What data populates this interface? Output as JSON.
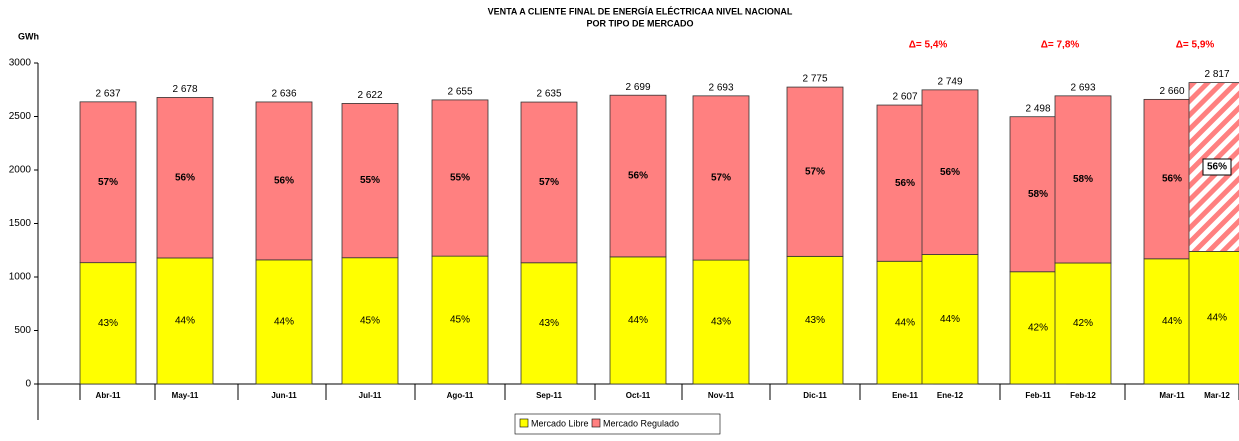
{
  "chart_data": {
    "type": "stacked_bar",
    "title": "VENTA A  CLIENTE FINAL DE ENERGÍA ELÉCTRICAA NIVEL NACIONAL",
    "subtitle": "POR TIPO DE MERCADO",
    "ylabel": "GWh",
    "categories": [
      "Abr-11",
      "May-11",
      "Jun-11",
      "Jul-11",
      "Ago-11",
      "Sep-11",
      "Oct-11",
      "Nov-11",
      "Dic-11",
      "Ene-11",
      "Ene-12",
      "Feb-11",
      "Feb-12",
      "Mar-11",
      "Mar-12"
    ],
    "series": [
      {
        "name": "Mercado Libre",
        "color": "#ffff00",
        "values": [
          1134,
          1178,
          1160,
          1180,
          1195,
          1133,
          1188,
          1158,
          1193,
          1147,
          1210,
          1049,
          1131,
          1170,
          1239
        ],
        "share_labels": [
          "43%",
          "44%",
          "44%",
          "45%",
          "45%",
          "43%",
          "44%",
          "43%",
          "43%",
          "44%",
          "44%",
          "42%",
          "42%",
          "44%",
          "44%"
        ]
      },
      {
        "name": "Mercado Regulado",
        "color": "#ff8080",
        "values": [
          1503,
          1500,
          1476,
          1442,
          1460,
          1502,
          1511,
          1535,
          1582,
          1460,
          1539,
          1449,
          1562,
          1490,
          1578
        ],
        "share_labels": [
          "57%",
          "56%",
          "56%",
          "55%",
          "55%",
          "57%",
          "56%",
          "57%",
          "57%",
          "56%",
          "56%",
          "58%",
          "58%",
          "56%",
          "56%"
        ]
      }
    ],
    "totals": [
      2637,
      2678,
      2636,
      2622,
      2655,
      2635,
      2699,
      2693,
      2775,
      2607,
      2749,
      2498,
      2693,
      2660,
      2817
    ],
    "total_labels": [
      "2 637",
      "2 678",
      "2  636",
      "2 622",
      "2 655",
      "2 635",
      "2 699",
      "2 693",
      "2 775",
      "2 607",
      "2 749",
      "2 498",
      "2 693",
      "2 660",
      "2 817"
    ],
    "annotations": [
      "Δ= 5,4%",
      "Δ= 7,8%",
      "Δ= 5,9%"
    ],
    "ylim": [
      0,
      3000
    ],
    "yticks": [
      0,
      500,
      1000,
      1500,
      2000,
      2500,
      3000
    ],
    "legend": "bottom"
  }
}
